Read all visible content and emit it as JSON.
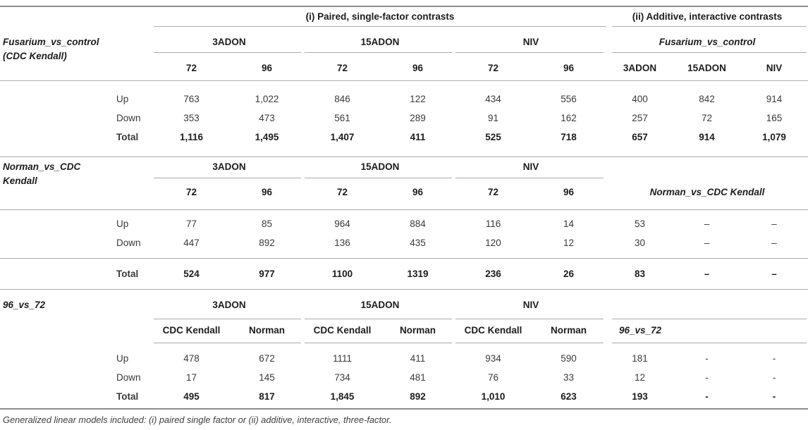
{
  "table": {
    "section_titles": {
      "paired": "(i) Paired, single-factor contrasts",
      "additive": "(ii) Additive, interactive contrasts"
    },
    "blocks": [
      {
        "row_label": [
          "Fusarium_vs_control",
          "(CDC Kendall)"
        ],
        "left_groups": [
          "3ADON",
          "15ADON",
          "NIV"
        ],
        "left_subheaders": [
          "72",
          "96",
          "72",
          "96",
          "72",
          "96"
        ],
        "right_label": "Fusarium_vs_control",
        "right_subheaders": [
          "3ADON",
          "15ADON",
          "NIV"
        ],
        "rows": [
          {
            "label": "Up",
            "values": [
              "763",
              "1,022",
              "846",
              "122",
              "434",
              "556",
              "400",
              "842",
              "914"
            ]
          },
          {
            "label": "Down",
            "values": [
              "353",
              "473",
              "561",
              "289",
              "91",
              "162",
              "257",
              "72",
              "165"
            ]
          },
          {
            "label": "Total",
            "values": [
              "1,116",
              "1,495",
              "1,407",
              "411",
              "525",
              "718",
              "657",
              "914",
              "1,079"
            ]
          }
        ]
      },
      {
        "row_label": [
          "Norman_vs_CDC",
          "Kendall"
        ],
        "left_groups": [
          "3ADON",
          "15ADON",
          "NIV"
        ],
        "left_subheaders": [
          "72",
          "96",
          "72",
          "96",
          "72",
          "96"
        ],
        "right_label": "Norman_vs_CDC Kendall",
        "rows": [
          {
            "label": "Up",
            "values": [
              "77",
              "85",
              "964",
              "884",
              "116",
              "14",
              "53",
              "–",
              "–"
            ]
          },
          {
            "label": "Down",
            "values": [
              "447",
              "892",
              "136",
              "435",
              "120",
              "12",
              "30",
              "–",
              "–"
            ]
          },
          {
            "label": "Total",
            "values": [
              "524",
              "977",
              "1100",
              "1319",
              "236",
              "26",
              "83",
              "–",
              "–"
            ]
          }
        ]
      },
      {
        "row_label": [
          "96_vs_72",
          ""
        ],
        "left_groups": [
          "3ADON",
          "15ADON",
          "NIV"
        ],
        "left_subheaders": [
          "CDC Kendall",
          "Norman",
          "CDC Kendall",
          "Norman",
          "CDC Kendall",
          "Norman"
        ],
        "right_label": "96_vs_72",
        "rows": [
          {
            "label": "Up",
            "values": [
              "478",
              "672",
              "1111",
              "411",
              "934",
              "590",
              "181",
              "-",
              "-"
            ]
          },
          {
            "label": "Down",
            "values": [
              "17",
              "145",
              "734",
              "481",
              "76",
              "33",
              "12",
              "-",
              "-"
            ]
          },
          {
            "label": "Total",
            "values": [
              "495",
              "817",
              "1,845",
              "892",
              "1,010",
              "623",
              "193",
              "-",
              "-"
            ]
          }
        ]
      }
    ],
    "footnote": "Generalized linear models included: (i) paired single factor or (ii) additive, interactive, three-factor."
  }
}
